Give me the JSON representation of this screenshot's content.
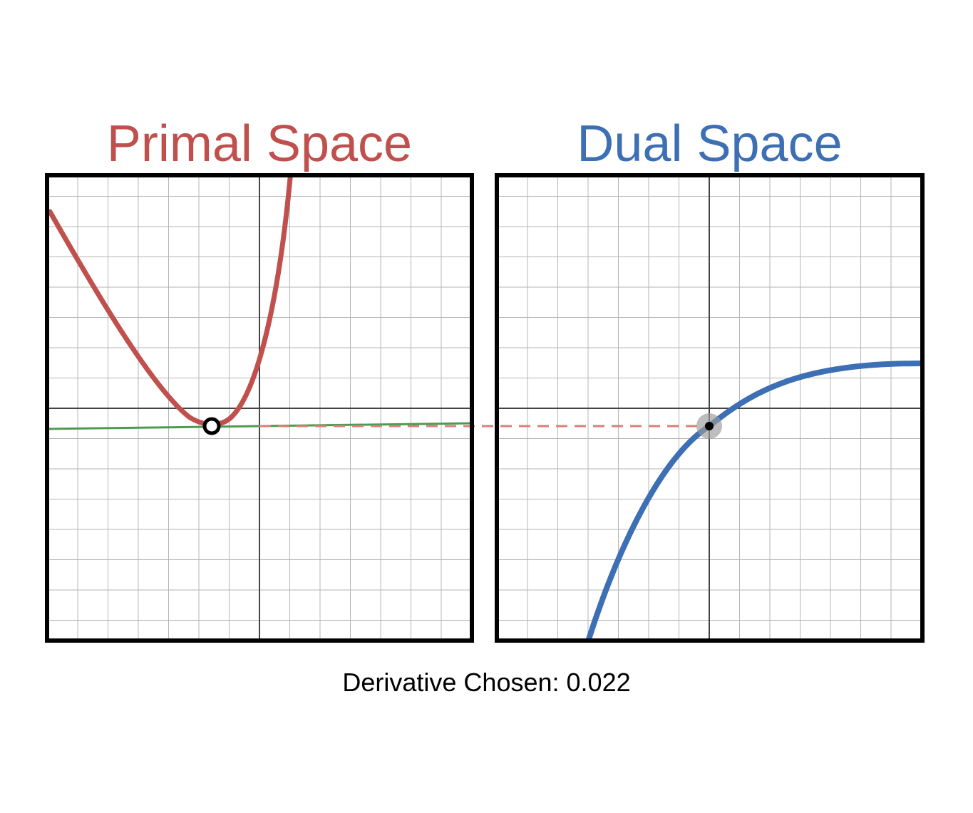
{
  "primal": {
    "title": "Primal Space",
    "color": "#c0504d",
    "tangent_color": "#4e9a51"
  },
  "dual": {
    "title": "Dual Space",
    "color": "#3d6fb5"
  },
  "connector_color": "#d9807a",
  "derivative": {
    "label": "Derivative Chosen:",
    "value": "0.022"
  }
}
